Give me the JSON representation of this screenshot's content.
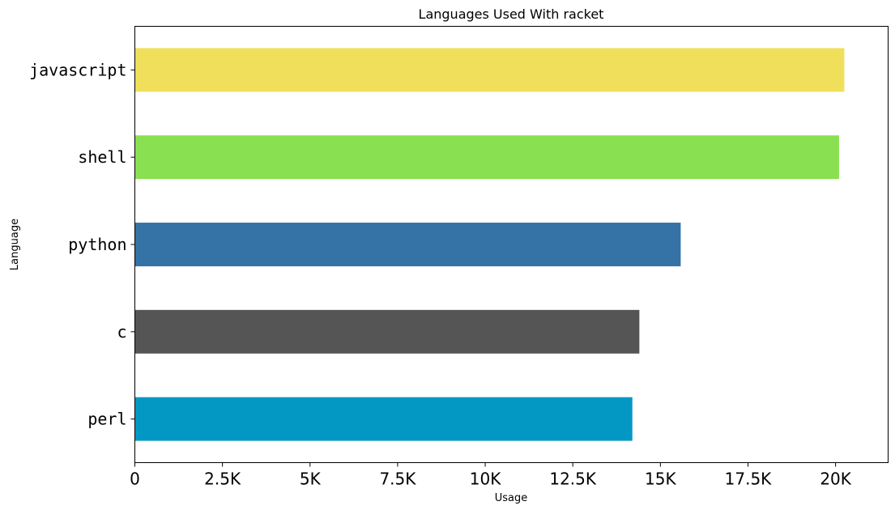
{
  "chart_data": {
    "type": "bar",
    "orientation": "horizontal",
    "title": "Languages Used With racket",
    "xlabel": "Usage",
    "ylabel": "Language",
    "categories": [
      "javascript",
      "shell",
      "python",
      "c",
      "perl"
    ],
    "values": [
      20250,
      20100,
      15580,
      14400,
      14200
    ],
    "colors": [
      "#f0df5a",
      "#89e051",
      "#3572a5",
      "#555555",
      "#0398c4"
    ],
    "xlim": [
      0,
      21500
    ],
    "xticks": [
      0,
      2500,
      5000,
      7500,
      10000,
      12500,
      15000,
      17500,
      20000
    ],
    "xtick_labels": [
      "0",
      "2.5K",
      "5K",
      "7.5K",
      "10K",
      "12.5K",
      "15K",
      "17.5K",
      "20K"
    ],
    "grid": false,
    "legend": "none"
  }
}
